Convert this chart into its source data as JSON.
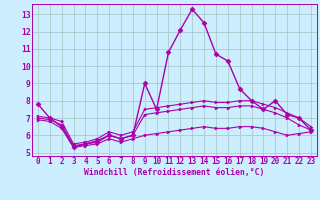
{
  "xlabel": "Windchill (Refroidissement éolien,°C)",
  "background_color": "#cceeff",
  "grid_color": "#aacccc",
  "line_color": "#aa00aa",
  "xlim": [
    -0.5,
    23.5
  ],
  "ylim": [
    4.8,
    13.6
  ],
  "yticks": [
    5,
    6,
    7,
    8,
    9,
    10,
    11,
    12,
    13
  ],
  "xticks": [
    0,
    1,
    2,
    3,
    4,
    5,
    6,
    7,
    8,
    9,
    10,
    11,
    12,
    13,
    14,
    15,
    16,
    17,
    18,
    19,
    20,
    21,
    22,
    23
  ],
  "series": [
    {
      "x": [
        0,
        1,
        2,
        3,
        4,
        5,
        6,
        7,
        8,
        9,
        10,
        11,
        12,
        13,
        14,
        15,
        16,
        17,
        18,
        19,
        20,
        21,
        22,
        23
      ],
      "y": [
        7.8,
        7.0,
        6.5,
        5.3,
        5.5,
        5.6,
        6.0,
        5.8,
        6.0,
        9.0,
        7.5,
        10.8,
        12.1,
        13.3,
        12.5,
        10.7,
        10.3,
        8.7,
        8.0,
        7.5,
        8.0,
        7.2,
        7.0,
        6.3
      ],
      "marker": "D",
      "markersize": 2.5,
      "lw": 1.0
    },
    {
      "x": [
        0,
        1,
        2,
        3,
        4,
        5,
        6,
        7,
        8,
        9,
        10,
        11,
        12,
        13,
        14,
        15,
        16,
        17,
        18,
        19,
        20,
        21,
        22,
        23
      ],
      "y": [
        7.1,
        7.0,
        6.8,
        5.5,
        5.6,
        5.8,
        6.2,
        6.0,
        6.2,
        7.5,
        7.6,
        7.7,
        7.8,
        7.9,
        8.0,
        7.9,
        7.9,
        8.0,
        8.0,
        7.8,
        7.6,
        7.3,
        7.0,
        6.5
      ],
      "marker": ">",
      "markersize": 2.0,
      "lw": 0.8
    },
    {
      "x": [
        0,
        1,
        2,
        3,
        4,
        5,
        6,
        7,
        8,
        9,
        10,
        11,
        12,
        13,
        14,
        15,
        16,
        17,
        18,
        19,
        20,
        21,
        22,
        23
      ],
      "y": [
        7.0,
        6.9,
        6.6,
        5.4,
        5.5,
        5.7,
        6.0,
        5.8,
        6.0,
        7.2,
        7.3,
        7.4,
        7.5,
        7.6,
        7.7,
        7.6,
        7.6,
        7.7,
        7.7,
        7.5,
        7.3,
        7.0,
        6.6,
        6.3
      ],
      "marker": ">",
      "markersize": 2.0,
      "lw": 0.8
    },
    {
      "x": [
        0,
        1,
        2,
        3,
        4,
        5,
        6,
        7,
        8,
        9,
        10,
        11,
        12,
        13,
        14,
        15,
        16,
        17,
        18,
        19,
        20,
        21,
        22,
        23
      ],
      "y": [
        6.9,
        6.8,
        6.4,
        5.3,
        5.4,
        5.5,
        5.8,
        5.6,
        5.8,
        6.0,
        6.1,
        6.2,
        6.3,
        6.4,
        6.5,
        6.4,
        6.4,
        6.5,
        6.5,
        6.4,
        6.2,
        6.0,
        6.1,
        6.2
      ],
      "marker": ">",
      "markersize": 2.0,
      "lw": 0.8
    }
  ],
  "tick_fontsize": 5.5,
  "xlabel_fontsize": 5.8
}
